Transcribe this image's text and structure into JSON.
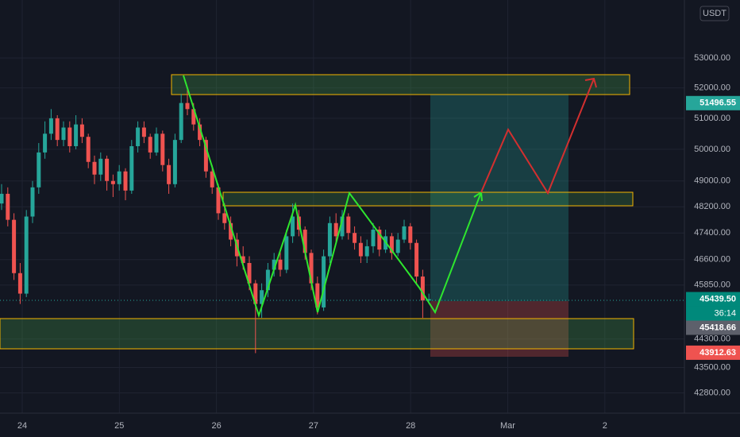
{
  "chart_data": {
    "type": "candlestick",
    "log_scale": true,
    "grid": true,
    "up_color": "#26a69a",
    "down_color": "#ef5350",
    "currency": "USDT",
    "categories": [
      "24",
      "25",
      "26",
      "27",
      "28",
      "Mar",
      "2"
    ],
    "ylim": [
      42250,
      55000
    ],
    "yticks": [
      {
        "value": 53000,
        "label": "53000.00"
      },
      {
        "value": 52000,
        "label": "52000.00"
      },
      {
        "value": 51000,
        "label": "51000.00"
      },
      {
        "value": 50000,
        "label": "50000.00"
      },
      {
        "value": 49000,
        "label": "49000.00"
      },
      {
        "value": 48200,
        "label": "48200.00"
      },
      {
        "value": 47400,
        "label": "47400.00"
      },
      {
        "value": 46600,
        "label": "46600.00"
      },
      {
        "value": 45850,
        "label": "45850.00"
      },
      {
        "value": 44300,
        "label": "44300.00"
      },
      {
        "value": 43500,
        "label": "43500.00"
      },
      {
        "value": 42800,
        "label": "42800.00"
      }
    ],
    "price_badges": [
      {
        "value": 51496.55,
        "label": "51496.55",
        "color": "#26a69a"
      },
      {
        "value": 45439.5,
        "label": "45439.50",
        "color": "#00897b"
      },
      {
        "value": 45418.66,
        "label": "45418.66",
        "color": "#5d606b"
      },
      {
        "value": 43912.63,
        "label": "43912.63",
        "color": "#ef5350"
      }
    ],
    "countdown": "36:14",
    "candles": [
      [
        48300,
        48900,
        48100,
        48600
      ],
      [
        48600,
        48800,
        47600,
        47800
      ],
      [
        47800,
        48000,
        46000,
        46200
      ],
      [
        46200,
        46500,
        45300,
        45600
      ],
      [
        45600,
        48100,
        45500,
        47900
      ],
      [
        47900,
        49000,
        47700,
        48800
      ],
      [
        48800,
        50200,
        48600,
        49900
      ],
      [
        49900,
        50900,
        49700,
        50500
      ],
      [
        50500,
        51300,
        50300,
        51000
      ],
      [
        51000,
        51100,
        50100,
        50300
      ],
      [
        50300,
        50900,
        50100,
        50700
      ],
      [
        50700,
        50900,
        49900,
        50100
      ],
      [
        50100,
        51100,
        50000,
        50800
      ],
      [
        50800,
        51000,
        50200,
        50400
      ],
      [
        50400,
        50500,
        49400,
        49600
      ],
      [
        49600,
        49800,
        48900,
        49200
      ],
      [
        49200,
        49900,
        49000,
        49700
      ],
      [
        49700,
        49800,
        48700,
        49000
      ],
      [
        49000,
        49200,
        48500,
        48900
      ],
      [
        48900,
        49500,
        48700,
        49300
      ],
      [
        49300,
        49400,
        48400,
        48700
      ],
      [
        48700,
        50300,
        48600,
        50100
      ],
      [
        50100,
        50900,
        49900,
        50700
      ],
      [
        50700,
        50900,
        50200,
        50400
      ],
      [
        50400,
        50500,
        49700,
        49900
      ],
      [
        49900,
        50700,
        49800,
        50500
      ],
      [
        50500,
        50600,
        49300,
        49500
      ],
      [
        49500,
        49700,
        48600,
        48900
      ],
      [
        48900,
        50500,
        48800,
        50300
      ],
      [
        50300,
        51800,
        50200,
        51500
      ],
      [
        51500,
        52000,
        51100,
        51300
      ],
      [
        51300,
        51500,
        50600,
        50800
      ],
      [
        50800,
        51000,
        50100,
        50300
      ],
      [
        50300,
        50400,
        49100,
        49300
      ],
      [
        49300,
        49500,
        48600,
        48800
      ],
      [
        48800,
        48900,
        47800,
        48000
      ],
      [
        48000,
        48300,
        47500,
        47700
      ],
      [
        47700,
        47900,
        47000,
        47200
      ],
      [
        47200,
        47400,
        46400,
        46700
      ],
      [
        46700,
        47000,
        46300,
        46500
      ],
      [
        46500,
        46700,
        45700,
        45900
      ],
      [
        45900,
        46000,
        43900,
        45300
      ],
      [
        45300,
        45900,
        44900,
        45700
      ],
      [
        45700,
        46500,
        45500,
        46300
      ],
      [
        46300,
        46800,
        46100,
        46600
      ],
      [
        46600,
        46900,
        46100,
        46300
      ],
      [
        46300,
        47500,
        46200,
        47300
      ],
      [
        47300,
        48300,
        47100,
        47900
      ],
      [
        47900,
        48100,
        47300,
        47500
      ],
      [
        47500,
        47600,
        46600,
        46800
      ],
      [
        46800,
        46900,
        45700,
        45900
      ],
      [
        45900,
        46100,
        45000,
        45200
      ],
      [
        45200,
        46900,
        45100,
        46700
      ],
      [
        46700,
        47900,
        46500,
        47700
      ],
      [
        47700,
        48000,
        47100,
        47300
      ],
      [
        47300,
        48100,
        47200,
        47900
      ],
      [
        47900,
        48000,
        47200,
        47400
      ],
      [
        47400,
        47600,
        46900,
        47100
      ],
      [
        47100,
        47300,
        46500,
        46700
      ],
      [
        46700,
        47200,
        46500,
        47000
      ],
      [
        47000,
        47700,
        46800,
        47500
      ],
      [
        47500,
        47600,
        46700,
        46900
      ],
      [
        46900,
        47500,
        46800,
        47300
      ],
      [
        47300,
        47400,
        46600,
        46800
      ],
      [
        46800,
        47400,
        46700,
        47200
      ],
      [
        47200,
        47800,
        47100,
        47600
      ],
      [
        47600,
        47700,
        46900,
        47100
      ],
      [
        47100,
        47200,
        45900,
        46100
      ],
      [
        46100,
        46300,
        44900,
        45400
      ],
      [
        45400,
        45600,
        45300,
        45439.5
      ]
    ]
  }
}
